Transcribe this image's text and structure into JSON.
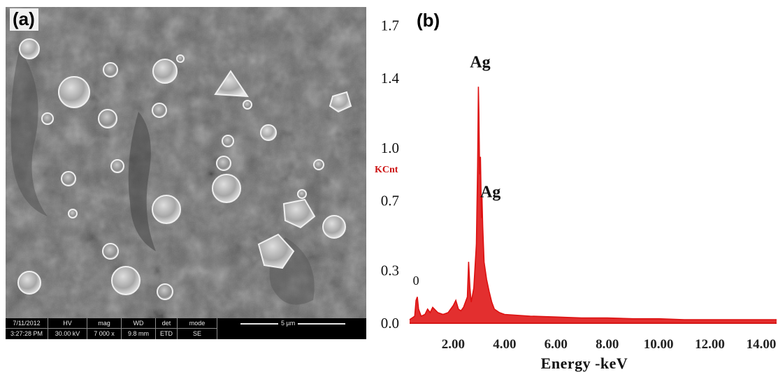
{
  "panel_a": {
    "label": "(a)",
    "info_bar": {
      "columns": [
        {
          "header": "7/11/2012",
          "value": "3:27:28 PM"
        },
        {
          "header": "HV",
          "value": "30.00 kV"
        },
        {
          "header": "mag",
          "value": "7 000 x"
        },
        {
          "header": "WD",
          "value": "9.8 mm"
        },
        {
          "header": "det",
          "value": "ETD"
        },
        {
          "header": "mode",
          "value": "SE"
        }
      ],
      "scale_label": "5 µm"
    }
  },
  "chart_data": {
    "type": "line",
    "panel_label": "(b)",
    "title": "",
    "xlabel": "Energy -keV",
    "ylabel": "KCnt",
    "xlim": [
      0.3,
      14.6
    ],
    "ylim": [
      0,
      1.75
    ],
    "xticks": [
      "2.00",
      "4.00",
      "6.00",
      "8.00",
      "10.00",
      "12.00",
      "14.00"
    ],
    "yticks": [
      "0.0",
      "0.3",
      "0.7",
      "1.0",
      "1.4",
      "1.7"
    ],
    "line_color": "#dd1111",
    "series": [
      {
        "x": [
          0.3,
          0.5,
          0.55,
          0.6,
          0.65,
          0.75,
          0.9,
          1.0,
          1.1,
          1.2,
          1.4,
          1.6,
          1.8,
          2.0,
          2.1,
          2.2,
          2.3,
          2.4,
          2.55,
          2.6,
          2.65,
          2.7,
          2.8,
          2.9,
          2.95,
          2.98,
          3.0,
          3.03,
          3.06,
          3.1,
          3.12,
          3.15,
          3.2,
          3.3,
          3.4,
          3.5,
          3.6,
          3.8,
          4.0,
          5.0,
          6.0,
          7.0,
          8.0,
          9.0,
          10.0,
          11.0,
          12.0,
          13.0,
          14.0,
          14.6
        ],
        "y": [
          0.02,
          0.04,
          0.13,
          0.15,
          0.08,
          0.04,
          0.05,
          0.08,
          0.06,
          0.09,
          0.06,
          0.05,
          0.06,
          0.1,
          0.13,
          0.08,
          0.07,
          0.09,
          0.15,
          0.35,
          0.2,
          0.12,
          0.2,
          0.45,
          0.9,
          1.35,
          1.2,
          0.85,
          0.95,
          0.6,
          0.72,
          0.55,
          0.35,
          0.25,
          0.18,
          0.12,
          0.08,
          0.06,
          0.05,
          0.04,
          0.035,
          0.03,
          0.03,
          0.025,
          0.025,
          0.02,
          0.02,
          0.02,
          0.02,
          0.02
        ]
      }
    ],
    "annotations": [
      {
        "text": "Ag",
        "x": 3.05,
        "y": 1.46
      },
      {
        "text": "Ag",
        "x": 3.45,
        "y": 0.72
      },
      {
        "text": "0",
        "x": 0.55,
        "y": 0.22
      }
    ]
  }
}
